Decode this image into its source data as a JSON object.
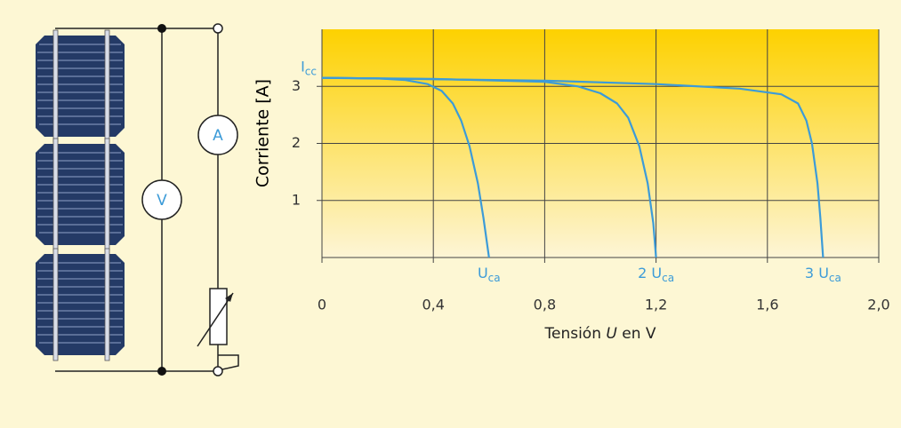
{
  "circuit": {
    "voltmeter_label": "V",
    "ammeter_label": "A"
  },
  "chart_data": {
    "type": "line",
    "x_label": {
      "before": "Tensión ",
      "italic": "U",
      "after": " en V"
    },
    "y_label": "Corriente [A]",
    "annotations": [
      {
        "main": "I",
        "sub": "cc"
      },
      {
        "main": "U",
        "sub": "ca"
      },
      {
        "main": "2 U",
        "sub": "ca"
      },
      {
        "main": "3 U",
        "sub": "ca"
      }
    ],
    "series": [
      {
        "color": "#3c9bd8",
        "x": [
          0,
          0.2,
          0.3,
          0.38,
          0.43,
          0.47,
          0.5,
          0.53,
          0.56,
          0.58,
          0.6
        ],
        "values": [
          3.15,
          3.14,
          3.11,
          3.04,
          2.92,
          2.7,
          2.4,
          1.95,
          1.3,
          0.7,
          0
        ]
      },
      {
        "color": "#3c9bd8",
        "x": [
          0,
          0.4,
          0.8,
          0.92,
          1.0,
          1.06,
          1.1,
          1.14,
          1.17,
          1.19,
          1.2
        ],
        "values": [
          3.15,
          3.13,
          3.08,
          3.0,
          2.88,
          2.7,
          2.45,
          1.95,
          1.3,
          0.6,
          0
        ]
      },
      {
        "color": "#3c9bd8",
        "x": [
          0,
          0.8,
          1.2,
          1.5,
          1.65,
          1.71,
          1.74,
          1.76,
          1.78,
          1.79,
          1.8
        ],
        "values": [
          3.15,
          3.1,
          3.04,
          2.96,
          2.86,
          2.7,
          2.4,
          2.0,
          1.3,
          0.7,
          0
        ]
      }
    ],
    "xlim": [
      0,
      2.0
    ],
    "ylim": [
      0,
      4
    ],
    "xticks": [
      0,
      {
        "value": 0.4,
        "label": "0,4"
      },
      {
        "value": 0.8,
        "label": "0,8"
      },
      {
        "value": 1.2,
        "label": "1,2"
      },
      {
        "value": 1.6,
        "label": "1,6"
      },
      {
        "value": 2.0,
        "label": "2,0"
      }
    ],
    "yticks": [
      1,
      2,
      3
    ],
    "grid": true
  }
}
